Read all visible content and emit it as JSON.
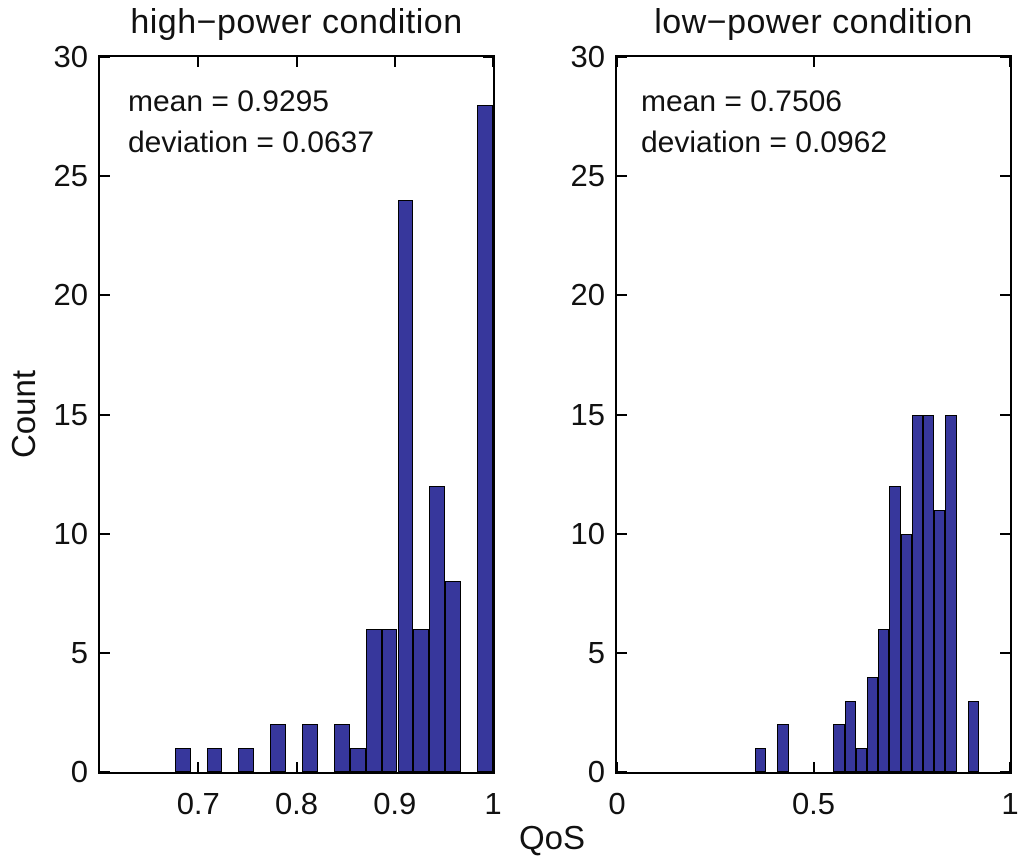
{
  "figure": {
    "xlabel": "QoS",
    "ylabel": "Count",
    "background": "#FFFFFF",
    "axis_color": "#000000",
    "bar_fill": "#37379C",
    "bar_edge": "#000000",
    "text_color": "#111111"
  },
  "chart_data": [
    {
      "type": "bar",
      "subtype": "histogram",
      "title": "high−power condition",
      "xlabel": "QoS",
      "ylabel": "Count",
      "xlim": [
        0.6,
        1.0
      ],
      "ylim": [
        0,
        30
      ],
      "grid": false,
      "legend": null,
      "xticks": [
        {
          "value": 0.7,
          "label": "0.7"
        },
        {
          "value": 0.8,
          "label": "0.8"
        },
        {
          "value": 0.9,
          "label": "0.9"
        },
        {
          "value": 1.0,
          "label": "1"
        }
      ],
      "yticks": [
        {
          "value": 0,
          "label": "0"
        },
        {
          "value": 5,
          "label": "5"
        },
        {
          "value": 10,
          "label": "10"
        },
        {
          "value": 15,
          "label": "15"
        },
        {
          "value": 20,
          "label": "20"
        },
        {
          "value": 25,
          "label": "25"
        },
        {
          "value": 30,
          "label": "30"
        }
      ],
      "bins": {
        "start": 0.676,
        "width": 0.0162,
        "count": 20
      },
      "counts": [
        1,
        0,
        1,
        0,
        1,
        0,
        2,
        0,
        2,
        0,
        2,
        1,
        6,
        6,
        24,
        6,
        12,
        8,
        0,
        28
      ],
      "total_samples": 100,
      "mean": 0.9295,
      "deviation": 0.0637,
      "annotation": {
        "line1": "mean = 0.9295",
        "line2": "deviation = 0.0637"
      }
    },
    {
      "type": "bar",
      "subtype": "histogram",
      "title": "low−power condition",
      "xlabel": "QoS",
      "ylabel": "Count",
      "xlim": [
        0.0,
        1.0
      ],
      "ylim": [
        0,
        30
      ],
      "grid": false,
      "legend": null,
      "xticks": [
        {
          "value": 0.0,
          "label": "0"
        },
        {
          "value": 0.5,
          "label": "0.5"
        },
        {
          "value": 1.0,
          "label": "1"
        }
      ],
      "yticks": [
        {
          "value": 0,
          "label": "0"
        },
        {
          "value": 5,
          "label": "5"
        },
        {
          "value": 10,
          "label": "10"
        },
        {
          "value": 15,
          "label": "15"
        },
        {
          "value": 20,
          "label": "20"
        },
        {
          "value": 25,
          "label": "25"
        },
        {
          "value": 30,
          "label": "30"
        }
      ],
      "bins": {
        "start": 0.351,
        "width": 0.0285,
        "count": 20
      },
      "counts": [
        1,
        0,
        2,
        0,
        0,
        0,
        0,
        2,
        3,
        1,
        4,
        6,
        12,
        10,
        15,
        15,
        11,
        15,
        0,
        3
      ],
      "total_samples": 100,
      "mean": 0.7506,
      "deviation": 0.0962,
      "annotation": {
        "line1": "mean = 0.7506",
        "line2": "deviation = 0.0962"
      }
    }
  ]
}
